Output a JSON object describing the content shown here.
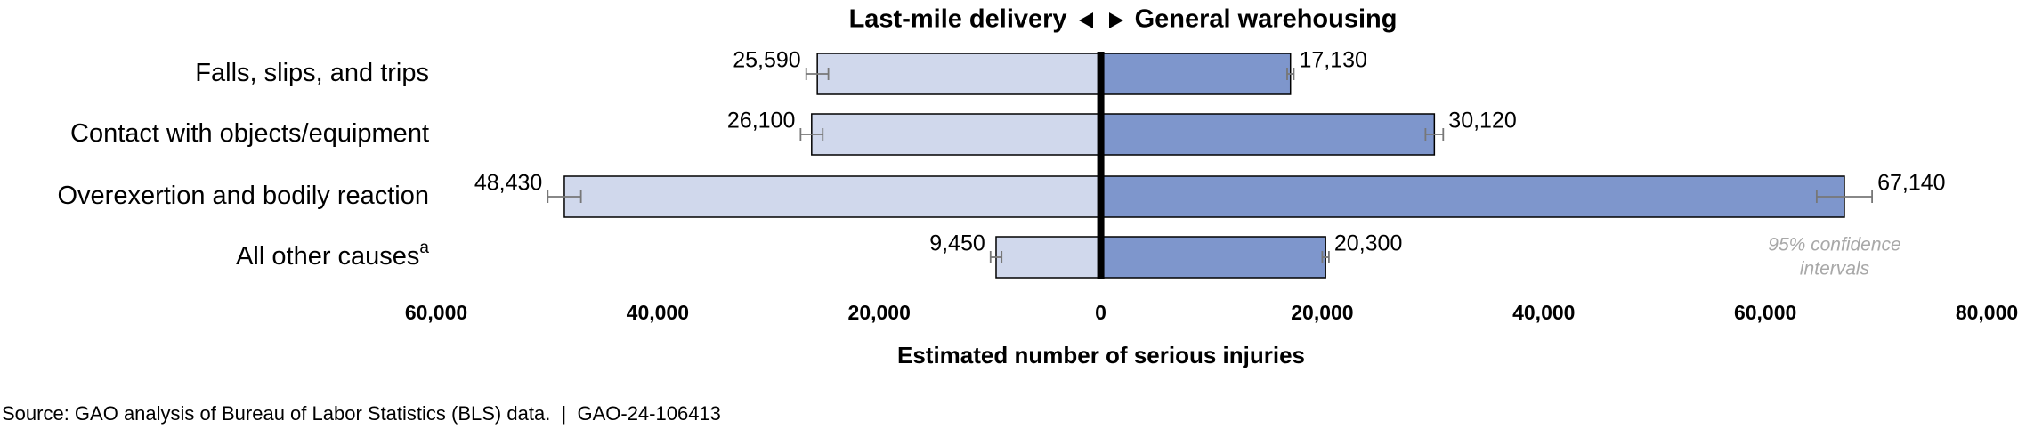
{
  "chart_data": {
    "type": "diverging-bar",
    "xlabel": "Estimated number of serious injuries",
    "categories": [
      "Falls, slips, and trips",
      "Contact with objects/equipment",
      "Overexertion and bodily reaction",
      "All other causes"
    ],
    "category_superscripts": [
      null,
      null,
      null,
      "a"
    ],
    "series": [
      {
        "name": "Last-mile delivery",
        "side": "left",
        "color": "#d0d8ec",
        "values": [
          25590,
          26100,
          48430,
          9450
        ],
        "value_labels": [
          "25,590",
          "26,100",
          "48,430",
          "9,450"
        ],
        "errors": [
          1000,
          1000,
          1500,
          500
        ]
      },
      {
        "name": "General warehousing",
        "side": "right",
        "color": "#7e96cc",
        "values": [
          17130,
          30120,
          67140,
          20300
        ],
        "value_labels": [
          "17,130",
          "30,120",
          "67,140",
          "20,300"
        ],
        "errors": [
          300,
          800,
          2500,
          300
        ]
      }
    ],
    "left_xlim": [
      0,
      60000
    ],
    "left_xticks": [
      {
        "value": 20000,
        "label": "20,000"
      },
      {
        "value": 40000,
        "label": "40,000"
      },
      {
        "value": 60000,
        "label": "60,000"
      }
    ],
    "right_xlim": [
      0,
      80000
    ],
    "right_xticks": [
      0,
      {
        "value": 20000,
        "label": "20,000"
      },
      {
        "value": 40000,
        "label": "40,000"
      },
      {
        "value": 60000,
        "label": "60,000"
      },
      {
        "value": 80000,
        "label": "80,000"
      }
    ],
    "annotation": [
      "95% confidence",
      "intervals"
    ],
    "source": "Source: GAO analysis of Bureau of Labor Statistics (BLS) data.  |  GAO-24-106413"
  }
}
